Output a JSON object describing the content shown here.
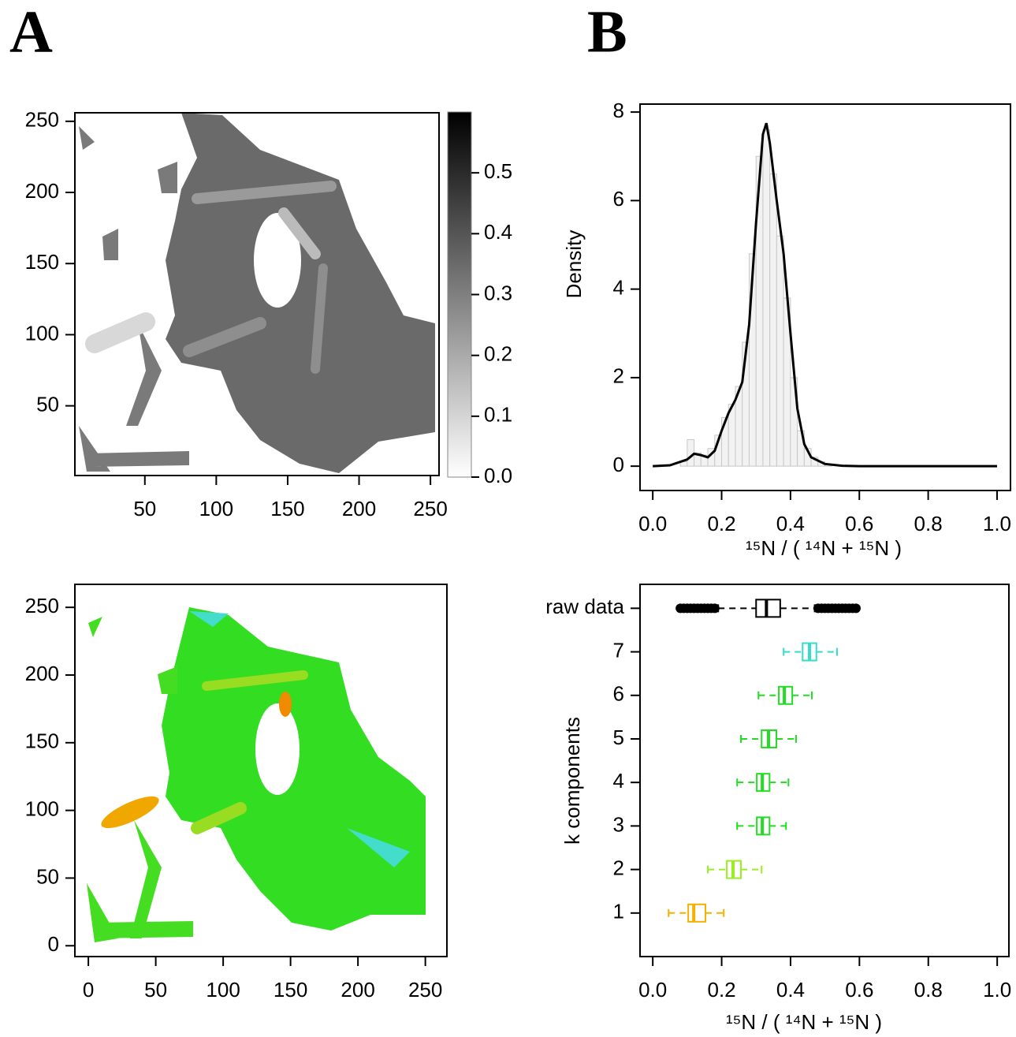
{
  "panel_labels": [
    "A",
    "B"
  ],
  "chart_data": [
    {
      "type": "heatmap",
      "xlim": [
        1,
        256
      ],
      "ylim": [
        1,
        256
      ],
      "xticks": [
        50,
        100,
        150,
        200,
        250
      ],
      "yticks": [
        50,
        100,
        150,
        200,
        250
      ],
      "colorbar": {
        "lim": [
          0,
          0.6
        ],
        "colors": [
          "#ffffff",
          "#000000"
        ],
        "ticks": [
          {
            "value": 0,
            "label": "0.0"
          },
          {
            "value": 0.1,
            "label": "0.1"
          },
          {
            "value": 0.2,
            "label": "0.2"
          },
          {
            "value": 0.3,
            "label": "0.3"
          },
          {
            "value": 0.4,
            "label": "0.4"
          },
          {
            "value": 0.5,
            "label": "0.5"
          }
        ]
      }
    },
    {
      "type": "line",
      "color": "#000000",
      "xlabel": "¹⁵N / ( ¹⁴N + ¹⁵N )",
      "ylabel": "Density",
      "x": [
        0,
        0.05,
        0.1,
        0.12,
        0.14,
        0.16,
        0.18,
        0.2,
        0.22,
        0.24,
        0.26,
        0.28,
        0.3,
        0.32,
        0.33,
        0.34,
        0.36,
        0.38,
        0.4,
        0.42,
        0.44,
        0.46,
        0.5,
        0.55,
        0.6,
        1.0
      ],
      "values": [
        0,
        0.02,
        0.15,
        0.28,
        0.25,
        0.2,
        0.35,
        0.8,
        1.2,
        1.5,
        1.9,
        3.2,
        5.5,
        7.5,
        7.75,
        7.3,
        6.0,
        4.8,
        3.0,
        1.3,
        0.5,
        0.2,
        0.05,
        0.01,
        0,
        0
      ],
      "histogram": {
        "color": "#c8c8c8",
        "bins": [
          0.08,
          0.1,
          0.12,
          0.14,
          0.16,
          0.18,
          0.2,
          0.22,
          0.24,
          0.26,
          0.28,
          0.3,
          0.32,
          0.34,
          0.36,
          0.38,
          0.4,
          0.42,
          0.44,
          0.46,
          0.48,
          0.5,
          0.52
        ],
        "counts": [
          0.1,
          0.6,
          0.3,
          0.25,
          0.4,
          0.7,
          1.1,
          1.4,
          1.8,
          2.8,
          4.8,
          7.0,
          7.6,
          6.6,
          5.2,
          3.8,
          2.0,
          0.8,
          0.4,
          0.2,
          0.1,
          0.05
        ]
      },
      "xlim": [
        -0.037,
        1.039
      ],
      "ylim": [
        -0.55,
        8.18
      ],
      "xticks": [
        {
          "value": 0,
          "label": "0.0"
        },
        {
          "value": 0.2,
          "label": "0.2"
        },
        {
          "value": 0.4,
          "label": "0.4"
        },
        {
          "value": 0.6,
          "label": "0.6"
        },
        {
          "value": 0.8,
          "label": "0.8"
        },
        {
          "value": 1,
          "label": "1.0"
        }
      ],
      "yticks": [
        0,
        2,
        4,
        6,
        8
      ]
    },
    {
      "type": "heatmap",
      "xlim": [
        -10,
        266
      ],
      "ylim": [
        -8,
        267
      ],
      "xticks": [
        0,
        50,
        100,
        150,
        200,
        250
      ],
      "yticks": [
        0,
        50,
        100,
        150,
        200,
        250
      ]
    },
    {
      "type": "boxplot",
      "xlabel": "¹⁵N / ( ¹⁴N + ¹⁵N )",
      "ylabel": "k components",
      "categories": [
        "1",
        "2",
        "3",
        "4",
        "5",
        "6",
        "7",
        "raw data"
      ],
      "boxes": [
        {
          "color": "#f5b000",
          "whislo": 0.046,
          "q1": 0.103,
          "med": 0.119,
          "q3": 0.153,
          "whishi": 0.206
        },
        {
          "color": "#99ee22",
          "whislo": 0.16,
          "q1": 0.215,
          "med": 0.233,
          "q3": 0.256,
          "whishi": 0.316
        },
        {
          "color": "#22dd22",
          "whislo": 0.245,
          "q1": 0.302,
          "med": 0.318,
          "q3": 0.339,
          "whishi": 0.387
        },
        {
          "color": "#22dd22",
          "whislo": 0.245,
          "q1": 0.302,
          "med": 0.318,
          "q3": 0.339,
          "whishi": 0.394
        },
        {
          "color": "#22dd22",
          "whislo": 0.256,
          "q1": 0.316,
          "med": 0.336,
          "q3": 0.359,
          "whishi": 0.416
        },
        {
          "color": "#22dd22",
          "whislo": 0.307,
          "q1": 0.366,
          "med": 0.382,
          "q3": 0.405,
          "whishi": 0.462
        },
        {
          "color": "#33ddcc",
          "whislo": 0.38,
          "q1": 0.435,
          "med": 0.455,
          "q3": 0.475,
          "whishi": 0.535
        },
        {
          "color": "#000000",
          "whislo": 0.19,
          "q1": 0.3,
          "med": 0.33,
          "q3": 0.37,
          "whishi": 0.47,
          "outliers": [
            0.08,
            0.09,
            0.1,
            0.11,
            0.12,
            0.13,
            0.14,
            0.15,
            0.16,
            0.17,
            0.18,
            0.48,
            0.49,
            0.5,
            0.51,
            0.52,
            0.53,
            0.54,
            0.55,
            0.56,
            0.57,
            0.58,
            0.59
          ]
        }
      ],
      "xlim": [
        -0.037,
        1.034
      ],
      "ylim": [
        0,
        8.55
      ],
      "xticks": [
        {
          "value": 0,
          "label": "0.0"
        },
        {
          "value": 0.2,
          "label": "0.2"
        },
        {
          "value": 0.4,
          "label": "0.4"
        },
        {
          "value": 0.6,
          "label": "0.6"
        },
        {
          "value": 0.8,
          "label": "0.8"
        },
        {
          "value": 1,
          "label": "1.0"
        }
      ]
    }
  ]
}
